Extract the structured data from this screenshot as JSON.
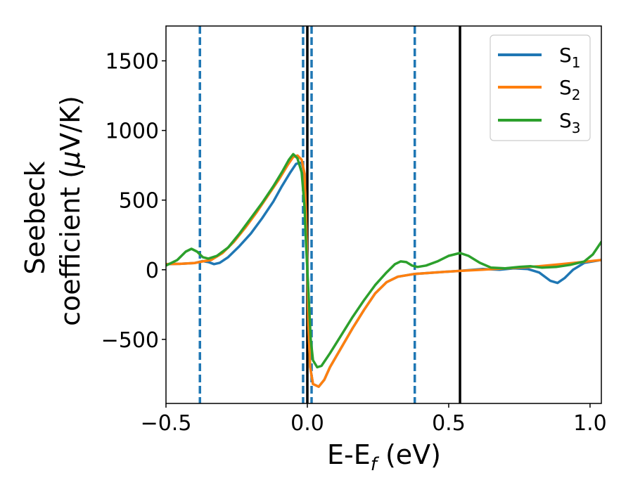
{
  "chart_data": {
    "type": "line",
    "xlabel_main": "E-E",
    "xlabel_sub": "f",
    "xlabel_unit": " (eV)",
    "ylabel_line1": "Seebeck",
    "ylabel_line2_a": "coefficient  (",
    "ylabel_line2_mu": "μ",
    "ylabel_line2_b": "V/K)",
    "xlim": [
      -0.5,
      1.04
    ],
    "ylim": [
      -960,
      1750
    ],
    "xticks": [
      {
        "value": -0.5,
        "label": "−0.5"
      },
      {
        "value": 0.0,
        "label": "0.0"
      },
      {
        "value": 0.5,
        "label": "0.5"
      },
      {
        "value": 1.0,
        "label": "1.0"
      }
    ],
    "yticks": [
      {
        "value": -500,
        "label": "−500"
      },
      {
        "value": 0,
        "label": "0"
      },
      {
        "value": 500,
        "label": "500"
      },
      {
        "value": 1000,
        "label": "1000"
      },
      {
        "value": 1500,
        "label": "1500"
      }
    ],
    "legend_position": "top-right",
    "vlines_dashed": [
      -0.38,
      -0.015,
      0.015,
      0.38
    ],
    "vlines_solid": [
      0.0,
      0.54
    ],
    "colors": {
      "S1": "#1f77b4",
      "S2": "#ff7f0e",
      "S3": "#2ca02c",
      "dashed": "#1f77b4",
      "solid": "#000000"
    },
    "series": [
      {
        "name": "S",
        "subscript": "1",
        "color_key": "S1",
        "points": [
          [
            -0.5,
            40
          ],
          [
            -0.45,
            42
          ],
          [
            -0.4,
            48
          ],
          [
            -0.37,
            62
          ],
          [
            -0.35,
            55
          ],
          [
            -0.33,
            40
          ],
          [
            -0.31,
            50
          ],
          [
            -0.28,
            90
          ],
          [
            -0.24,
            170
          ],
          [
            -0.2,
            260
          ],
          [
            -0.16,
            370
          ],
          [
            -0.12,
            490
          ],
          [
            -0.09,
            600
          ],
          [
            -0.06,
            700
          ],
          [
            -0.04,
            760
          ],
          [
            -0.02,
            770
          ],
          [
            -0.01,
            690
          ],
          [
            -0.005,
            400
          ],
          [
            0.0,
            0
          ],
          [
            0.004,
            -400
          ],
          [
            0.01,
            -700
          ],
          [
            0.02,
            -820
          ],
          [
            0.04,
            -840
          ],
          [
            0.06,
            -790
          ],
          [
            0.08,
            -700
          ],
          [
            0.12,
            -560
          ],
          [
            0.16,
            -420
          ],
          [
            0.2,
            -290
          ],
          [
            0.24,
            -170
          ],
          [
            0.28,
            -90
          ],
          [
            0.32,
            -50
          ],
          [
            0.38,
            -30
          ],
          [
            0.45,
            -20
          ],
          [
            0.54,
            -8
          ],
          [
            0.62,
            5
          ],
          [
            0.68,
            0
          ],
          [
            0.73,
            10
          ],
          [
            0.78,
            5
          ],
          [
            0.82,
            -20
          ],
          [
            0.86,
            -80
          ],
          [
            0.885,
            -95
          ],
          [
            0.91,
            -60
          ],
          [
            0.94,
            0
          ],
          [
            0.98,
            50
          ],
          [
            1.04,
            70
          ]
        ]
      },
      {
        "name": "S",
        "subscript": "2",
        "color_key": "S2",
        "points": [
          [
            -0.5,
            40
          ],
          [
            -0.45,
            42
          ],
          [
            -0.4,
            48
          ],
          [
            -0.37,
            60
          ],
          [
            -0.34,
            70
          ],
          [
            -0.3,
            120
          ],
          [
            -0.26,
            200
          ],
          [
            -0.22,
            300
          ],
          [
            -0.18,
            410
          ],
          [
            -0.14,
            530
          ],
          [
            -0.1,
            650
          ],
          [
            -0.07,
            750
          ],
          [
            -0.05,
            810
          ],
          [
            -0.035,
            820
          ],
          [
            -0.02,
            790
          ],
          [
            -0.01,
            690
          ],
          [
            -0.005,
            400
          ],
          [
            0.0,
            0
          ],
          [
            0.004,
            -400
          ],
          [
            0.01,
            -700
          ],
          [
            0.02,
            -820
          ],
          [
            0.04,
            -840
          ],
          [
            0.06,
            -790
          ],
          [
            0.08,
            -700
          ],
          [
            0.12,
            -560
          ],
          [
            0.16,
            -420
          ],
          [
            0.2,
            -290
          ],
          [
            0.24,
            -170
          ],
          [
            0.28,
            -90
          ],
          [
            0.32,
            -50
          ],
          [
            0.38,
            -30
          ],
          [
            0.45,
            -20
          ],
          [
            0.54,
            -8
          ],
          [
            0.62,
            0
          ],
          [
            0.68,
            8
          ],
          [
            0.75,
            15
          ],
          [
            0.82,
            25
          ],
          [
            0.9,
            40
          ],
          [
            0.97,
            55
          ],
          [
            1.04,
            70
          ]
        ]
      },
      {
        "name": "S",
        "subscript": "3",
        "color_key": "S3",
        "points": [
          [
            -0.5,
            30
          ],
          [
            -0.46,
            70
          ],
          [
            -0.43,
            130
          ],
          [
            -0.41,
            150
          ],
          [
            -0.39,
            130
          ],
          [
            -0.37,
            90
          ],
          [
            -0.35,
            80
          ],
          [
            -0.32,
            100
          ],
          [
            -0.28,
            160
          ],
          [
            -0.24,
            260
          ],
          [
            -0.2,
            370
          ],
          [
            -0.16,
            480
          ],
          [
            -0.12,
            600
          ],
          [
            -0.09,
            700
          ],
          [
            -0.065,
            790
          ],
          [
            -0.05,
            830
          ],
          [
            -0.035,
            800
          ],
          [
            -0.02,
            700
          ],
          [
            -0.01,
            450
          ],
          [
            -0.005,
            200
          ],
          [
            0.0,
            0
          ],
          [
            0.006,
            -250
          ],
          [
            0.012,
            -500
          ],
          [
            0.02,
            -650
          ],
          [
            0.035,
            -700
          ],
          [
            0.05,
            -690
          ],
          [
            0.08,
            -600
          ],
          [
            0.12,
            -470
          ],
          [
            0.16,
            -340
          ],
          [
            0.2,
            -220
          ],
          [
            0.24,
            -110
          ],
          [
            0.28,
            -20
          ],
          [
            0.31,
            40
          ],
          [
            0.33,
            60
          ],
          [
            0.35,
            55
          ],
          [
            0.37,
            30
          ],
          [
            0.39,
            20
          ],
          [
            0.42,
            30
          ],
          [
            0.46,
            60
          ],
          [
            0.5,
            100
          ],
          [
            0.54,
            120
          ],
          [
            0.57,
            100
          ],
          [
            0.61,
            50
          ],
          [
            0.65,
            15
          ],
          [
            0.7,
            10
          ],
          [
            0.75,
            20
          ],
          [
            0.79,
            25
          ],
          [
            0.83,
            15
          ],
          [
            0.88,
            20
          ],
          [
            0.93,
            35
          ],
          [
            0.98,
            60
          ],
          [
            1.01,
            110
          ],
          [
            1.04,
            200
          ]
        ]
      }
    ]
  }
}
